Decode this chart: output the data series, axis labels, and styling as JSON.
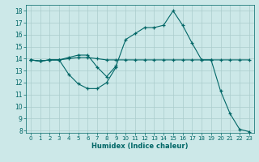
{
  "xlabel": "Humidex (Indice chaleur)",
  "bg_color": "#cce8e8",
  "grid_color": "#aacccc",
  "line_color": "#006666",
  "xlim": [
    -0.5,
    23.5
  ],
  "ylim": [
    7.8,
    18.5
  ],
  "yticks": [
    8,
    9,
    10,
    11,
    12,
    13,
    14,
    15,
    16,
    17,
    18
  ],
  "xticks": [
    0,
    1,
    2,
    3,
    4,
    5,
    6,
    7,
    8,
    9,
    10,
    11,
    12,
    13,
    14,
    15,
    16,
    17,
    18,
    19,
    20,
    21,
    22,
    23
  ],
  "series": [
    {
      "x": [
        0,
        1,
        2,
        3,
        4,
        5,
        6,
        7,
        8,
        9,
        10,
        11,
        12,
        13,
        14,
        15,
        16,
        17,
        18,
        19,
        20,
        21,
        22,
        23
      ],
      "y": [
        13.9,
        13.8,
        13.9,
        13.9,
        14.0,
        14.1,
        14.1,
        14.0,
        13.9,
        13.9,
        13.9,
        13.9,
        13.9,
        13.9,
        13.9,
        13.9,
        13.9,
        13.9,
        13.9,
        13.9,
        13.9,
        13.9,
        13.9,
        13.9
      ]
    },
    {
      "x": [
        0,
        1,
        2,
        3,
        4,
        5,
        6,
        7,
        8,
        9
      ],
      "y": [
        13.9,
        13.8,
        13.9,
        13.9,
        12.7,
        11.9,
        11.5,
        11.5,
        12.0,
        13.3
      ]
    },
    {
      "x": [
        0,
        1,
        2,
        3,
        4,
        5,
        6,
        7,
        8,
        9,
        10,
        11,
        12,
        13,
        14,
        15,
        16,
        17,
        18,
        19,
        20,
        21,
        22,
        23
      ],
      "y": [
        13.9,
        13.8,
        13.9,
        13.9,
        14.1,
        14.3,
        14.3,
        13.3,
        12.5,
        13.4,
        15.6,
        16.1,
        16.6,
        16.6,
        16.8,
        18.0,
        16.8,
        15.3,
        13.9,
        13.9,
        11.3,
        9.4,
        8.1,
        7.9
      ]
    }
  ]
}
